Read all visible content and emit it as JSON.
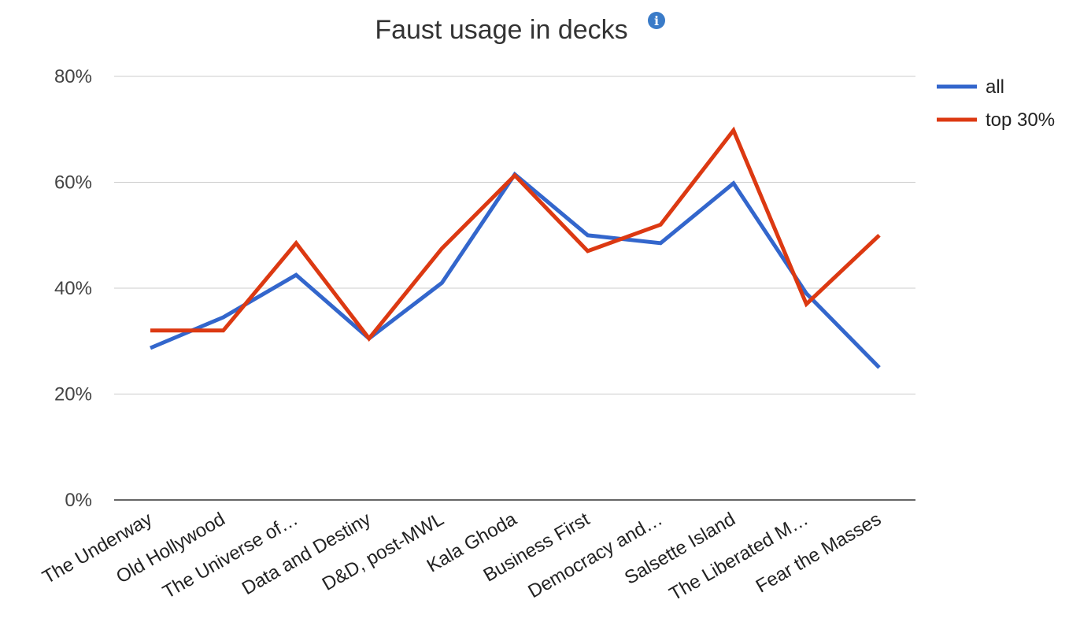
{
  "chart_data": {
    "type": "line",
    "title": "Faust usage in decks",
    "info_icon": "info-icon",
    "xlabel": "",
    "ylabel": "",
    "ylim": [
      0,
      80
    ],
    "y_ticks": [
      0,
      20,
      40,
      60,
      80
    ],
    "y_tick_labels": [
      "0%",
      "20%",
      "40%",
      "60%",
      "80%"
    ],
    "grid": true,
    "legend_position": "top-right",
    "categories": [
      "The Underway",
      "Old Hollywood",
      "The Universe of…",
      "Data and Destiny",
      "D&D, post-MWL",
      "Kala Ghoda",
      "Business First",
      "Democracy and…",
      "Salsette Island",
      "The Liberated M…",
      "Fear the Masses"
    ],
    "series": [
      {
        "name": "all",
        "color": "#3366cc",
        "values": [
          28.7,
          34.5,
          42.5,
          30.5,
          41.0,
          61.5,
          50.0,
          48.5,
          59.8,
          39.0,
          25.0
        ]
      },
      {
        "name": "top 30%",
        "color": "#dc3912",
        "values": [
          32.0,
          32.0,
          48.5,
          30.5,
          47.5,
          61.3,
          47.0,
          52.0,
          69.8,
          37.0,
          50.0
        ]
      }
    ]
  }
}
